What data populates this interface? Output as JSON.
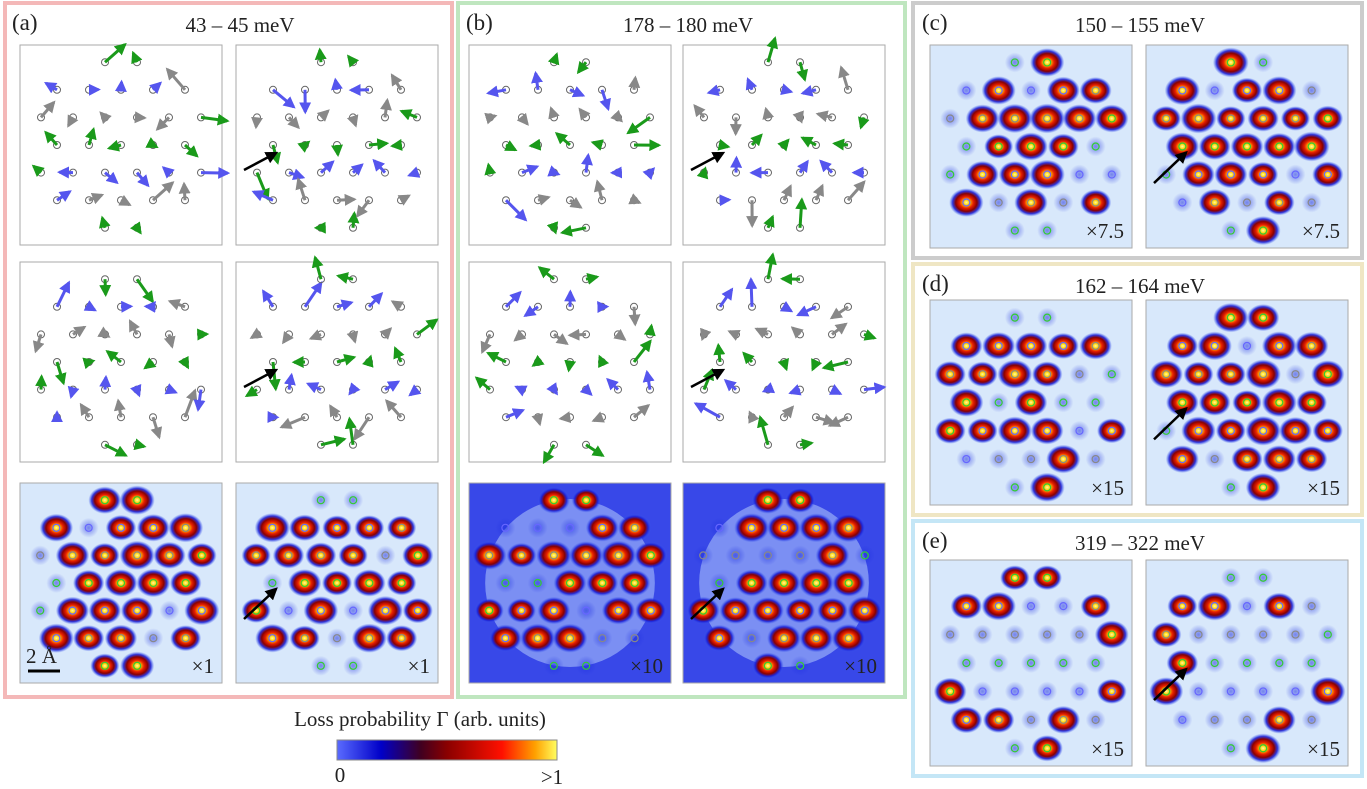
{
  "panels": [
    {
      "label": "(a)",
      "title": "43 – 45 meV",
      "scales": [
        "×1",
        "×1"
      ],
      "scale_bar": "2 Å"
    },
    {
      "label": "(b)",
      "title": "178 – 180 meV",
      "scales": [
        "×10",
        "×10"
      ]
    },
    {
      "label": "(c)",
      "title": "150 – 155 meV",
      "scales": [
        "×7.5",
        "×7.5"
      ]
    },
    {
      "label": "(d)",
      "title": "162 – 164 meV",
      "scales": [
        "×15",
        "×15"
      ]
    },
    {
      "label": "(e)",
      "title": "319 – 322 meV",
      "scales": [
        "×15",
        "×15"
      ]
    }
  ],
  "colorbar": {
    "label": "Loss probability Γ (arb. units)",
    "min_label": "0",
    "max_label": ">1"
  }
}
